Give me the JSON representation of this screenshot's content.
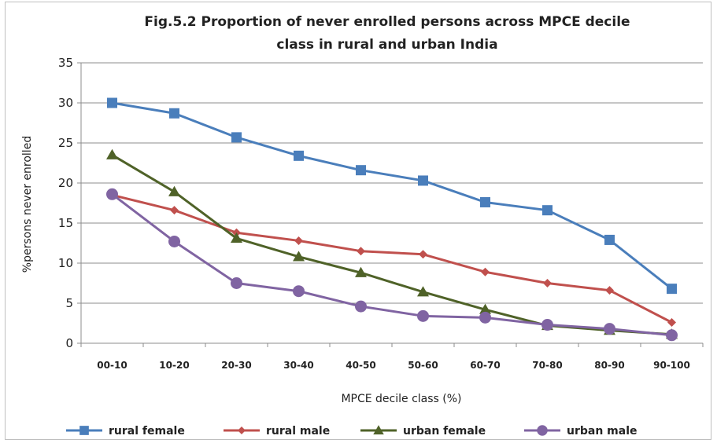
{
  "chart_data": {
    "type": "line",
    "title_lines": [
      "Fig.5.2 Proportion of never enrolled persons across MPCE decile",
      "class in rural  and urban India"
    ],
    "xlabel": "MPCE decile class (%)",
    "ylabel": "%persons never enrolled",
    "ylim": [
      0,
      35
    ],
    "yticks": [
      "0",
      "5",
      "10",
      "15",
      "20",
      "25",
      "30",
      "35"
    ],
    "categories": [
      "00-10",
      "10-20",
      "20-30",
      "30-40",
      "40-50",
      "50-60",
      "60-70",
      "70-80",
      "80-90",
      "90-100"
    ],
    "grid": "horizontal",
    "legend_position": "bottom",
    "series": [
      {
        "name": "rural female",
        "color": "#4a7ebb",
        "marker": "square",
        "values": [
          30.0,
          28.7,
          25.7,
          23.4,
          21.6,
          20.3,
          17.6,
          16.6,
          12.9,
          6.8
        ]
      },
      {
        "name": "rural male",
        "color": "#c0504d",
        "marker": "diamond",
        "values": [
          18.5,
          16.6,
          13.8,
          12.8,
          11.5,
          11.1,
          8.9,
          7.5,
          6.6,
          2.6
        ]
      },
      {
        "name": "urban female",
        "color": "#4f6228",
        "marker": "triangle",
        "values": [
          23.5,
          18.9,
          13.1,
          10.8,
          8.8,
          6.4,
          4.2,
          2.2,
          1.6,
          1.1
        ]
      },
      {
        "name": "urban male",
        "color": "#8064a2",
        "marker": "circle",
        "values": [
          18.6,
          12.7,
          7.5,
          6.5,
          4.6,
          3.4,
          3.2,
          2.3,
          1.8,
          1.0
        ]
      }
    ]
  }
}
